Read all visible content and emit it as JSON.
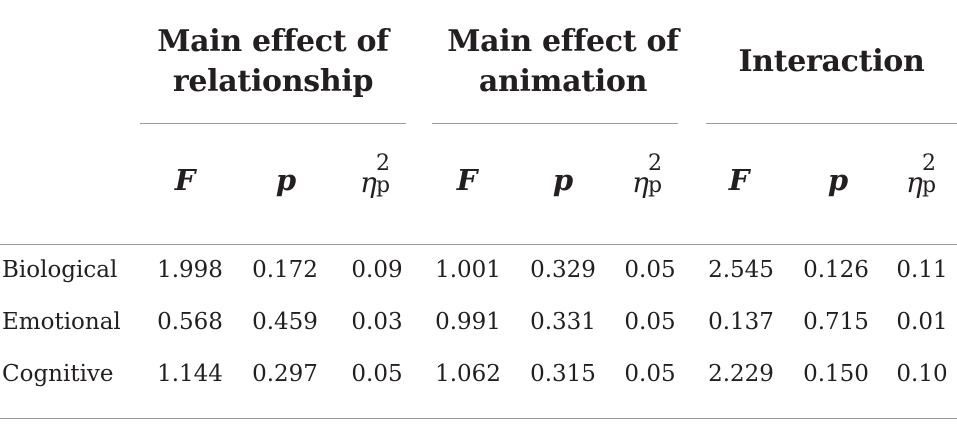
{
  "table": {
    "groups": [
      {
        "line1": "Main effect of",
        "line2": "relationship"
      },
      {
        "line1": "Main effect of",
        "line2": "animation"
      },
      {
        "line1": "Interaction",
        "line2": ""
      }
    ],
    "subheaders": {
      "f": "F",
      "p": "p",
      "eta_symbol": "η",
      "eta_sup": "2",
      "eta_sub": "p"
    },
    "rows": [
      {
        "label": "Biological",
        "values": [
          "1.998",
          "0.172",
          "0.09",
          "1.001",
          "0.329",
          "0.05",
          "2.545",
          "0.126",
          "0.11"
        ]
      },
      {
        "label": "Emotional",
        "values": [
          "0.568",
          "0.459",
          "0.03",
          "0.991",
          "0.331",
          "0.05",
          "0.137",
          "0.715",
          "0.01"
        ]
      },
      {
        "label": "Cognitive",
        "values": [
          "1.144",
          "0.297",
          "0.05",
          "1.062",
          "0.315",
          "0.05",
          "2.229",
          "0.150",
          "0.10"
        ]
      }
    ]
  }
}
